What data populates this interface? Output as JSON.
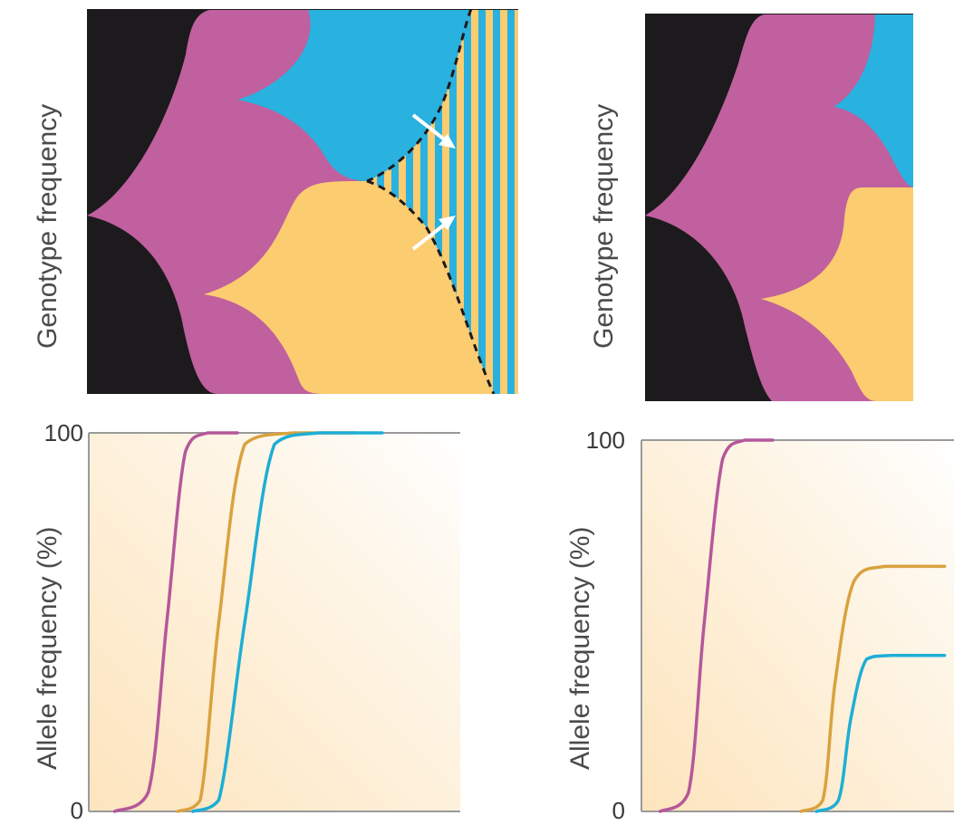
{
  "panels": {
    "left": {
      "genotype_ylabel": "Genotype frequency",
      "allele_ylabel": "Allele frequency (%)",
      "tick_top": "100",
      "tick_bottom": "0"
    },
    "right": {
      "genotype_ylabel": "Genotype frequency",
      "allele_ylabel": "Allele frequency (%)",
      "tick_top": "100",
      "tick_bottom": "0"
    }
  },
  "colors": {
    "ancestral": "#1c1a1c",
    "magenta": "#c0609e",
    "blue": "#29b1df",
    "yellow": "#fccc70",
    "magenta_line": "#b5579b",
    "yellow_line": "#d9a23e",
    "blue_line": "#1daed6",
    "axis": "#9a9a9a",
    "bg_fade": "#fde9c8"
  },
  "chart_data": [
    {
      "type": "line",
      "panel": "left",
      "ylim": [
        0,
        100
      ],
      "series": [
        {
          "color": "magenta",
          "points": [
            [
              0.07,
              0
            ],
            [
              0.16,
              5
            ],
            [
              0.21,
              50
            ],
            [
              0.26,
              95
            ],
            [
              0.32,
              100
            ],
            [
              0.4,
              100
            ]
          ]
        },
        {
          "color": "yellow",
          "points": [
            [
              0.24,
              0
            ],
            [
              0.3,
              3
            ],
            [
              0.35,
              50
            ],
            [
              0.42,
              97
            ],
            [
              0.55,
              100
            ],
            [
              0.72,
              100
            ]
          ]
        },
        {
          "color": "blue",
          "points": [
            [
              0.28,
              0
            ],
            [
              0.35,
              3
            ],
            [
              0.42,
              50
            ],
            [
              0.5,
              97
            ],
            [
              0.62,
              100
            ],
            [
              0.79,
              100
            ]
          ]
        }
      ]
    },
    {
      "type": "line",
      "panel": "right",
      "ylim": [
        0,
        100
      ],
      "series": [
        {
          "color": "magenta",
          "points": [
            [
              0.06,
              0
            ],
            [
              0.15,
              5
            ],
            [
              0.2,
              50
            ],
            [
              0.26,
              95
            ],
            [
              0.33,
              100
            ],
            [
              0.42,
              100
            ]
          ]
        },
        {
          "color": "yellow",
          "points": [
            [
              0.51,
              0
            ],
            [
              0.58,
              3
            ],
            [
              0.62,
              35
            ],
            [
              0.68,
              62
            ],
            [
              0.78,
              66
            ],
            [
              0.97,
              66
            ]
          ]
        },
        {
          "color": "blue",
          "points": [
            [
              0.56,
              0
            ],
            [
              0.63,
              3
            ],
            [
              0.67,
              25
            ],
            [
              0.72,
              41
            ],
            [
              0.8,
              42
            ],
            [
              0.97,
              42
            ]
          ]
        }
      ]
    }
  ]
}
